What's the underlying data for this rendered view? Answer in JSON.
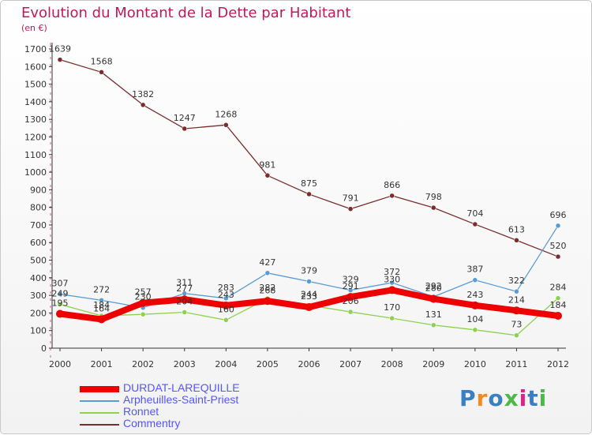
{
  "header": {
    "title": "Evolution du Montant de la Dette par Habitant",
    "subtitle": "(en €)"
  },
  "chart_data": {
    "type": "line",
    "title": "Evolution du Montant de la Dette par Habitant",
    "subtitle": "(en €)",
    "x": [
      "2000",
      "2001",
      "2002",
      "2003",
      "2004",
      "2005",
      "2006",
      "2007",
      "2008",
      "2009",
      "2010",
      "2011",
      "2012"
    ],
    "ylim": [
      0,
      1700
    ],
    "yticks": [
      0,
      100,
      200,
      300,
      400,
      500,
      600,
      700,
      800,
      900,
      1000,
      1100,
      1200,
      1300,
      1400,
      1500,
      1600,
      1700
    ],
    "grid": false,
    "legend_position": "bottom-left",
    "series": [
      {
        "name": "Commentry",
        "color": "#7b2d2d",
        "values": [
          1639,
          1568,
          1382,
          1247,
          1268,
          981,
          875,
          791,
          866,
          798,
          704,
          613,
          520
        ],
        "labels": [
          "1639",
          "1568",
          "1382",
          "1247",
          "1268",
          "981",
          "875",
          "791",
          "866",
          "798",
          "704",
          "613",
          "520"
        ]
      },
      {
        "name": "Arpheuilles-Saint-Priest",
        "color": "#5b9bd5",
        "values": [
          307,
          272,
          230,
          311,
          283,
          427,
          379,
          329,
          372,
          292,
          387,
          322,
          696
        ],
        "labels": [
          "307",
          "272",
          "230",
          "311",
          "283",
          "427",
          "379",
          "329",
          "372",
          "292",
          "387",
          "322",
          "696"
        ]
      },
      {
        "name": "Ronnet",
        "color": "#8ed14f",
        "values": [
          249,
          184,
          192,
          204,
          160,
          282,
          244,
          206,
          170,
          131,
          104,
          73,
          284
        ],
        "labels": [
          "249",
          "184",
          "",
          "204",
          "160",
          "282",
          "244",
          "206",
          "170",
          "131",
          "104",
          "73",
          "284"
        ]
      },
      {
        "name": "DURDAT-LAREQUILLE",
        "color": "#ee0000",
        "values": [
          195,
          164,
          257,
          277,
          243,
          268,
          233,
          291,
          330,
          280,
          243,
          214,
          184
        ],
        "labels": [
          "195",
          "164",
          "257",
          "277",
          "243",
          "268",
          "233",
          "291",
          "330",
          "280",
          "243",
          "214",
          "184"
        ]
      }
    ]
  },
  "legend": {
    "items": [
      {
        "name": "DURDAT-LAREQUILLE",
        "color": "#ee0000"
      },
      {
        "name": "Arpheuilles-Saint-Priest",
        "color": "#5b9bd5"
      },
      {
        "name": "Ronnet",
        "color": "#8ed14f"
      },
      {
        "name": "Commentry",
        "color": "#7b2d2d"
      }
    ]
  },
  "logo": {
    "text": "Proxiti",
    "letter_colors": [
      "#3a7fc1",
      "#f08a24",
      "#3a7fc1",
      "#4db848",
      "#e0218a",
      "#3a7fc1",
      "#4db848"
    ]
  }
}
